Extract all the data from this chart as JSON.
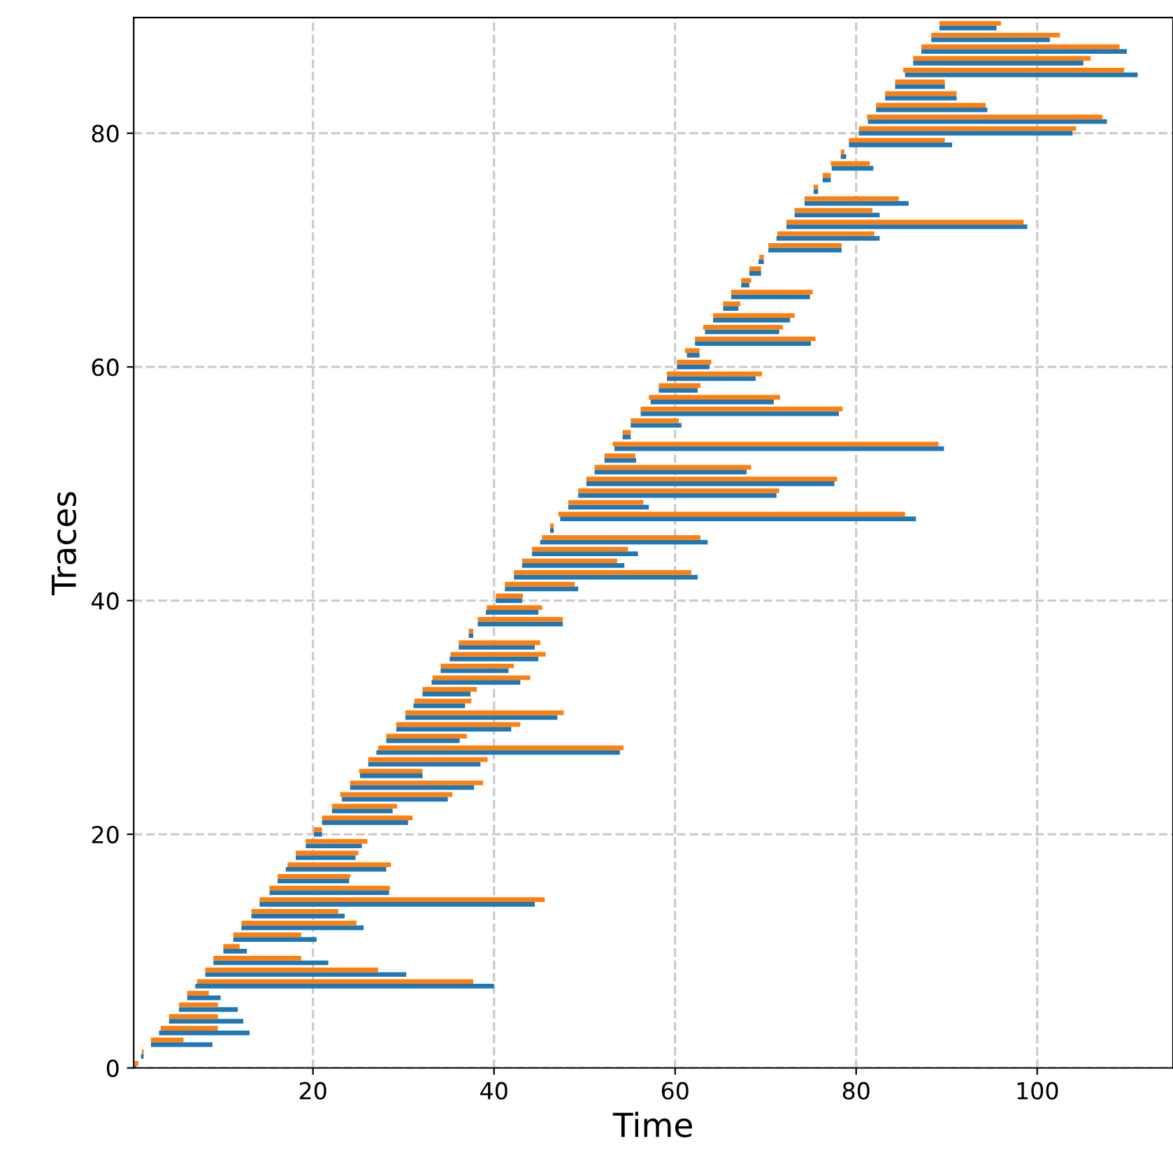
{
  "chart_data": {
    "type": "bar",
    "orientation": "horizontal",
    "xlabel": "Time",
    "ylabel": "Traces",
    "categories": [
      null,
      null,
      null,
      null,
      null,
      null,
      null,
      null,
      null,
      "80",
      null,
      null,
      null,
      null,
      null,
      null,
      null,
      null,
      null,
      null,
      null,
      null,
      null,
      null,
      null,
      null,
      null,
      null,
      null,
      "60",
      null,
      null,
      null,
      null,
      null,
      null,
      null,
      null,
      null,
      null,
      null,
      null,
      null,
      null,
      null,
      null,
      null,
      null,
      null,
      "40",
      null,
      null,
      null,
      null,
      null,
      null,
      null,
      null,
      null,
      null,
      null,
      null,
      null,
      null,
      null,
      null,
      null,
      null,
      null,
      "20",
      null,
      null,
      null,
      null,
      null,
      null,
      null,
      null,
      null,
      null,
      null,
      null,
      null,
      null,
      null,
      null,
      null,
      null,
      null,
      "0"
    ],
    "series": [
      {
        "color": "#1f77b4",
        "base": [
          89.2,
          88.3,
          87.2,
          86.3,
          85.4,
          84.3,
          83.2,
          82.2,
          81.3,
          80.3,
          79.2,
          78.3,
          77.3,
          76.3,
          75.3,
          74.3,
          73.2,
          72.3,
          71.2,
          70.3,
          69.2,
          68.2,
          67.3,
          66.2,
          65.3,
          64.2,
          63.3,
          62.2,
          61.3,
          60.2,
          59.1,
          58.2,
          57.3,
          56.2,
          55.1,
          54.2,
          53.3,
          52.2,
          51.1,
          50.2,
          49.3,
          48.2,
          47.3,
          46.2,
          45.1,
          44.2,
          43.1,
          42.2,
          41.2,
          40.2,
          39.1,
          38.2,
          37.2,
          36.1,
          35.1,
          34.1,
          33.1,
          32.1,
          31.1,
          30.2,
          29.2,
          28.1,
          27.0,
          26.1,
          25.2,
          24.1,
          23.2,
          22.1,
          21.0,
          20.1,
          19.2,
          18.1,
          17.0,
          16.1,
          15.2,
          14.1,
          13.2,
          12.1,
          11.2,
          10.1,
          9.0,
          8.1,
          7.0,
          6.1,
          5.2,
          4.1,
          3.0,
          2.1,
          1.0,
          0.3
        ],
        "values": [
          6.3,
          13.1,
          22.7,
          18.8,
          25.7,
          5.5,
          7.9,
          12.3,
          26.4,
          23.6,
          11.4,
          0.6,
          4.6,
          0.9,
          0.5,
          11.5,
          9.4,
          26.6,
          11.4,
          8.1,
          0.6,
          1.3,
          0.9,
          8.7,
          1.7,
          8.5,
          8.2,
          12.8,
          1.4,
          3.6,
          9.8,
          4.3,
          13.6,
          21.9,
          5.6,
          0.9,
          36.4,
          3.5,
          16.8,
          27.4,
          21.9,
          8.9,
          39.3,
          0.4,
          18.5,
          11.7,
          11.3,
          20.3,
          8.1,
          2.9,
          5.8,
          9.4,
          0.5,
          8.4,
          9.8,
          7.5,
          9.8,
          5.3,
          5.7,
          16.8,
          12.7,
          8.1,
          26.9,
          12.4,
          6.9,
          13.7,
          11.7,
          6.7,
          9.5,
          0.9,
          6.2,
          6.6,
          11.1,
          7.9,
          13.2,
          30.4,
          10.3,
          13.5,
          9.2,
          2.6,
          12.7,
          22.2,
          33.0,
          3.7,
          6.5,
          8.2,
          10.0,
          6.8,
          0.3,
          0.2
        ]
      },
      {
        "color": "#ff7f0e",
        "base": [
          89.2,
          88.3,
          87.2,
          86.3,
          85.2,
          84.3,
          83.2,
          82.2,
          81.2,
          80.3,
          79.2,
          78.3,
          77.2,
          76.3,
          75.3,
          74.3,
          73.2,
          72.3,
          71.3,
          70.3,
          69.3,
          68.2,
          67.3,
          66.2,
          65.3,
          64.2,
          63.1,
          62.2,
          61.1,
          60.2,
          59.1,
          58.2,
          57.1,
          56.2,
          55.1,
          54.2,
          53.1,
          52.2,
          51.1,
          50.2,
          49.3,
          48.2,
          47.1,
          46.2,
          45.3,
          44.2,
          43.1,
          42.2,
          41.2,
          40.2,
          39.2,
          38.2,
          37.2,
          36.1,
          35.2,
          34.1,
          33.2,
          32.1,
          31.2,
          30.2,
          29.2,
          28.1,
          27.2,
          26.1,
          25.1,
          24.1,
          23.0,
          22.1,
          21.0,
          20.1,
          19.2,
          18.1,
          17.2,
          16.1,
          15.2,
          14.1,
          13.2,
          12.1,
          11.2,
          10.1,
          9.0,
          8.1,
          7.2,
          6.1,
          5.2,
          4.1,
          3.2,
          2.1,
          1.1,
          0.3
        ],
        "values": [
          6.8,
          14.2,
          21.9,
          19.6,
          24.4,
          5.5,
          7.9,
          12.1,
          26.0,
          24.0,
          10.6,
          0.4,
          4.3,
          0.9,
          0.5,
          10.4,
          8.6,
          26.2,
          10.7,
          8.1,
          0.5,
          1.3,
          1.1,
          9.0,
          1.9,
          9.0,
          8.8,
          13.3,
          1.6,
          3.8,
          10.5,
          4.6,
          14.5,
          22.3,
          5.3,
          0.9,
          36.0,
          3.4,
          17.3,
          27.7,
          22.2,
          8.3,
          38.3,
          0.4,
          17.5,
          10.6,
          10.5,
          19.6,
          7.7,
          3.0,
          6.1,
          9.4,
          0.5,
          9.0,
          10.5,
          8.1,
          10.8,
          6.0,
          6.3,
          17.5,
          13.7,
          8.9,
          27.1,
          13.2,
          7.0,
          14.7,
          12.4,
          7.2,
          10.0,
          0.9,
          6.8,
          6.9,
          11.4,
          8.0,
          13.3,
          31.5,
          9.6,
          12.7,
          7.5,
          1.8,
          9.7,
          19.1,
          30.5,
          2.4,
          4.3,
          5.4,
          6.3,
          3.6,
          0.2,
          0.4
        ]
      }
    ],
    "xlim": [
      0.2,
      115
    ],
    "xticks": [
      20,
      40,
      60,
      80,
      100
    ],
    "grid": true,
    "legend": false
  }
}
